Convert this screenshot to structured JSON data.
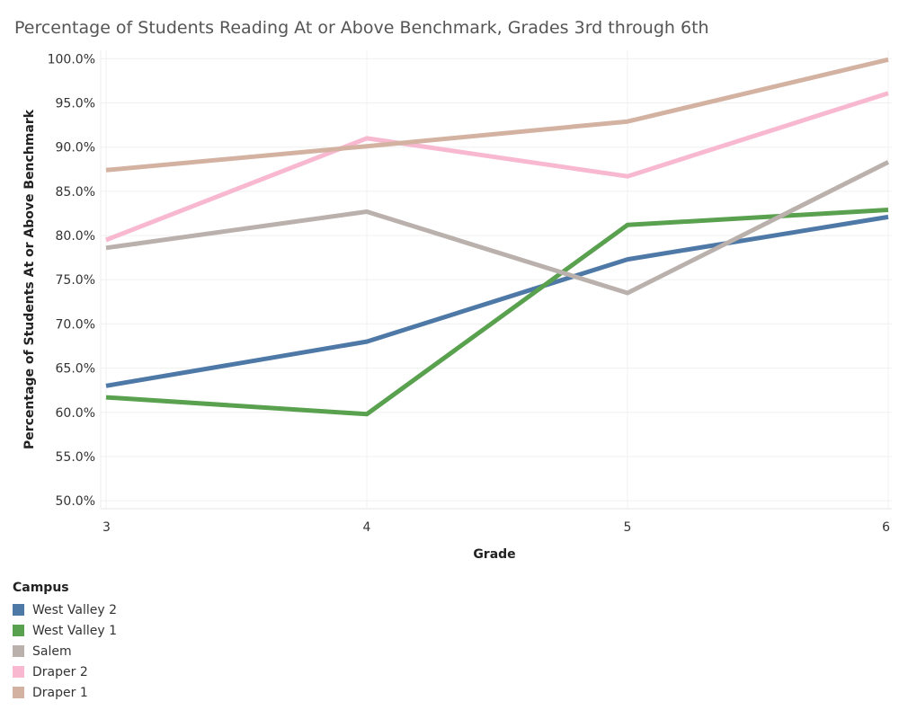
{
  "chart_data": {
    "type": "line",
    "title": "Percentage of Students Reading At or Above Benchmark, Grades 3rd through 6th",
    "xlabel": "Grade",
    "ylabel": "Percentage of Students At or Above Benchmark",
    "x": [
      "3",
      "4",
      "5",
      "6"
    ],
    "y_ticks": [
      "100.0%",
      "95.0%",
      "90.0%",
      "85.0%",
      "80.0%",
      "75.0%",
      "70.0%",
      "65.0%",
      "60.0%",
      "55.0%",
      "50.0%"
    ],
    "ylim": [
      50,
      100
    ],
    "grid": true,
    "legend_title": "Campus",
    "legend_position": "bottom-left",
    "series": [
      {
        "name": "West Valley 2",
        "color": "#4e79a7",
        "values": [
          63.0,
          68.0,
          77.3,
          82.1
        ]
      },
      {
        "name": "West Valley 1",
        "color": "#59a14f",
        "values": [
          61.7,
          59.8,
          81.2,
          82.9
        ]
      },
      {
        "name": "Salem",
        "color": "#bab0ac",
        "values": [
          78.6,
          82.7,
          73.5,
          88.3
        ]
      },
      {
        "name": "Draper 2",
        "color": "#f7b8d0",
        "values": [
          79.5,
          91.0,
          86.7,
          96.1
        ]
      },
      {
        "name": "Draper 1",
        "color": "#d4b2a2",
        "values": [
          87.4,
          90.1,
          92.9,
          99.9
        ]
      }
    ]
  }
}
